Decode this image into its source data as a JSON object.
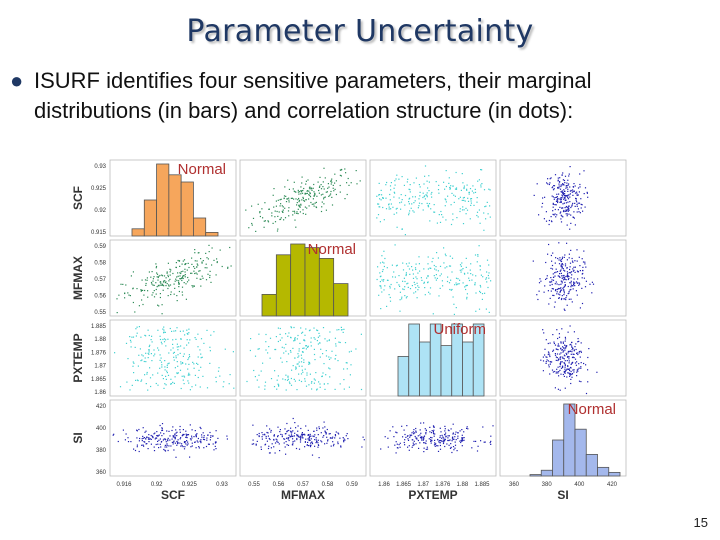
{
  "slide": {
    "title": "Parameter Uncertainty",
    "bullet": "ISURF identifies four sensitive parameters, their marginal distributions (in bars) and correlation structure (in dots):",
    "page_number": "15"
  },
  "chart_data": {
    "type": "scatter",
    "description_none": "",
    "variables": [
      {
        "name": "SCF",
        "range": [
          0.91,
          0.93
        ],
        "ticks": [
          "0.93",
          "0.925",
          "0.92",
          "0.915"
        ],
        "xticks": [
          "0.916",
          "0.92",
          "0.925",
          "0.93"
        ],
        "histogram": [
          0.1,
          0.5,
          1.0,
          0.85,
          0.75,
          0.25,
          0.05
        ],
        "dist_label": "Normal",
        "hist_color": "#f6a65c",
        "dot_color": "#2e8b57"
      },
      {
        "name": "MFMAX",
        "range": [
          0.55,
          0.59
        ],
        "ticks": [
          "0.59",
          "0.58",
          "0.57",
          "0.56",
          "0.55"
        ],
        "xticks": [
          "0.55",
          "0.56",
          "0.57",
          "0.58",
          "0.59"
        ],
        "histogram": [
          0.3,
          0.85,
          1.0,
          0.95,
          0.8,
          0.45
        ],
        "dist_label": "Normal",
        "hist_color": "#b5b800",
        "dot_color": "#2e8b57"
      },
      {
        "name": "PXTEMP",
        "range": [
          1.86,
          1.885
        ],
        "ticks": [
          "1.885",
          "1.88",
          "1.876",
          "1.87",
          "1.865",
          "1.86"
        ],
        "xticks": [
          "1.86",
          "1.865",
          "1.87",
          "1.876",
          "1.88",
          "1.885"
        ],
        "histogram": [
          0.55,
          1.0,
          0.75,
          1.0,
          0.7,
          1.0,
          0.75,
          1.0
        ],
        "dist_label": "Uniform",
        "hist_color": "#aee3f5",
        "dot_color": "#40d0d0"
      },
      {
        "name": "SI",
        "range": [
          350,
          420
        ],
        "ticks": [
          "420",
          "400",
          "380",
          "360"
        ],
        "xticks": [
          "360",
          "380",
          "400",
          "420"
        ],
        "histogram": [
          0.02,
          0.08,
          0.5,
          1.0,
          0.65,
          0.3,
          0.12,
          0.05
        ],
        "dist_label": "Normal",
        "hist_color": "#a4b8ec",
        "dot_color": "#2020b0"
      }
    ],
    "correlations": [
      [
        1,
        0.7,
        0,
        0
      ],
      [
        0.7,
        1,
        0,
        0
      ],
      [
        0,
        0,
        1,
        0
      ],
      [
        0,
        0,
        0,
        1
      ]
    ],
    "histogram_outline": "#555555",
    "grid": false
  }
}
